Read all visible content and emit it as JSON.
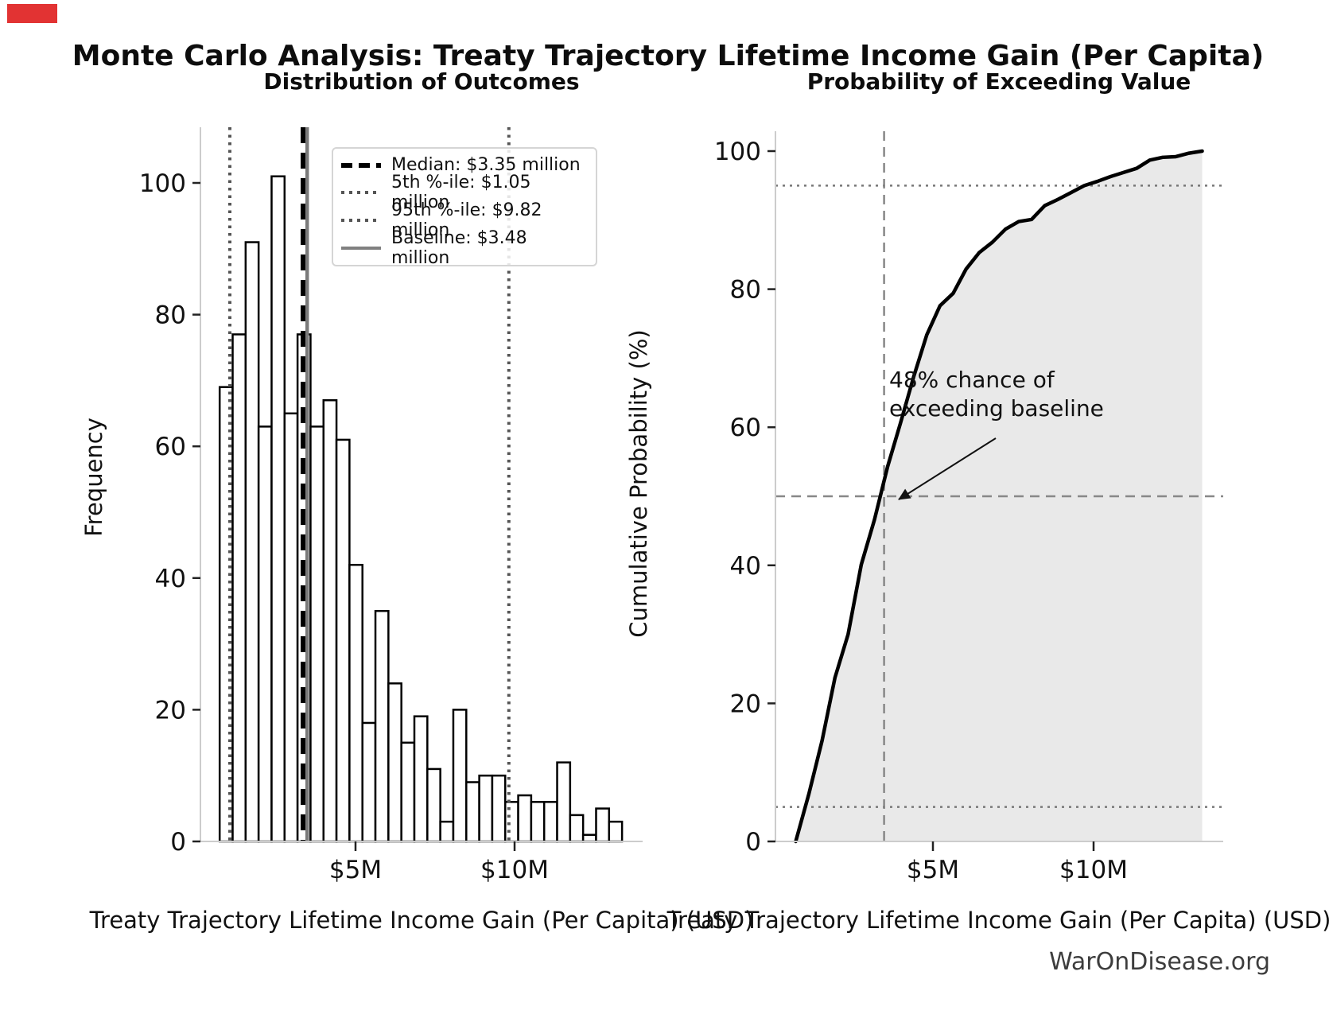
{
  "page": {
    "title": "Monte Carlo Analysis: Treaty Trajectory Lifetime Income Gain (Per Capita)",
    "watermark": "WarOnDisease.org",
    "marker_color": "#e23333"
  },
  "left_chart": {
    "subtitle": "Distribution of Outcomes",
    "ylabel": "Frequency",
    "xlabel": "Treaty Trajectory Lifetime Income Gain (Per Capita) (USD)",
    "legend": [
      {
        "label": "Median: $3.35 million",
        "style": "dashed-black"
      },
      {
        "label": "5th %-ile: $1.05 million",
        "style": "dotted-gray"
      },
      {
        "label": "95th %-ile: $9.82 million",
        "style": "dotted-gray"
      },
      {
        "label": "Baseline: $3.48 million",
        "style": "solid-gray"
      }
    ]
  },
  "right_chart": {
    "subtitle": "Probability of Exceeding Value",
    "ylabel": "Cumulative Probability (%)",
    "xlabel": "Treaty Trajectory Lifetime Income Gain (Per Capita) (USD)",
    "annotation_line1": "48% chance of",
    "annotation_line2": "exceeding baseline"
  },
  "colors": {
    "bar_fill": "#ffffff",
    "bar_stroke": "#000000",
    "median_line": "#000000",
    "percentile_dotted": "#555555",
    "baseline_solid": "#7a7a7a",
    "cdf_area_fill": "#e9e9e9",
    "cdf_line": "#000000",
    "reference_dashed": "#888888",
    "reference_dotted": "#777777",
    "axis_spine": "#cccccc",
    "watermark_text": "#3d3d3d"
  },
  "chart_data": [
    {
      "type": "bar",
      "title": "Distribution of Outcomes",
      "xlabel": "Treaty Trajectory Lifetime Income Gain (Per Capita) (USD)",
      "ylabel": "Frequency",
      "units": "million USD",
      "n_samples": 1000,
      "bin_start": 0.73,
      "bin_width": 0.408,
      "frequencies": [
        69,
        77,
        91,
        63,
        101,
        65,
        77,
        63,
        67,
        61,
        42,
        18,
        35,
        24,
        15,
        19,
        11,
        3,
        20,
        9,
        10,
        10,
        6,
        7,
        6,
        6,
        12,
        4,
        1,
        5,
        3
      ],
      "x_tick_values": [
        5,
        10
      ],
      "x_tick_labels": [
        "$5M",
        "$10M"
      ],
      "y_tick_values": [
        0,
        20,
        40,
        60,
        80,
        100
      ],
      "xlim": [
        0.12,
        14.03
      ],
      "ylim": [
        0,
        108
      ],
      "grid": false,
      "legend_position": "upper-left-of-plot",
      "reference_lines": {
        "median": 3.35,
        "p5": 1.05,
        "p95": 9.82,
        "baseline": 3.48
      }
    },
    {
      "type": "line",
      "title": "Probability of Exceeding Value",
      "xlabel": "Treaty Trajectory Lifetime Income Gain (Per Capita) (USD)",
      "ylabel": "Cumulative Probability (%)",
      "units": "million USD",
      "area_fill": true,
      "x": [
        0.73,
        1.14,
        1.55,
        1.95,
        2.36,
        2.77,
        3.18,
        3.59,
        3.99,
        4.4,
        4.81,
        5.22,
        5.63,
        6.03,
        6.44,
        6.85,
        7.26,
        7.67,
        8.07,
        8.48,
        8.89,
        9.3,
        9.71,
        10.11,
        10.52,
        10.93,
        11.34,
        11.75,
        12.15,
        12.56,
        12.97,
        13.38
      ],
      "y": [
        0,
        6.9,
        14.6,
        23.7,
        30.0,
        40.1,
        46.6,
        54.3,
        60.6,
        67.3,
        73.4,
        77.6,
        79.4,
        82.9,
        85.3,
        86.8,
        88.7,
        89.8,
        90.1,
        92.1,
        93.0,
        94.0,
        95.0,
        95.6,
        96.3,
        96.9,
        97.5,
        98.7,
        99.1,
        99.2,
        99.7,
        100
      ],
      "x_tick_values": [
        5,
        10
      ],
      "x_tick_labels": [
        "$5M",
        "$10M"
      ],
      "y_tick_values": [
        0,
        20,
        40,
        60,
        80,
        100
      ],
      "xlim": [
        0.12,
        14.03
      ],
      "ylim": [
        0,
        103
      ],
      "grid": false,
      "h_ref_lines_dotted": [
        5,
        95
      ],
      "h_ref_lines_dashed": [
        50
      ],
      "v_ref_line_dashed": 3.48,
      "annotation_point": {
        "x": 3.48,
        "y": 48
      }
    }
  ]
}
